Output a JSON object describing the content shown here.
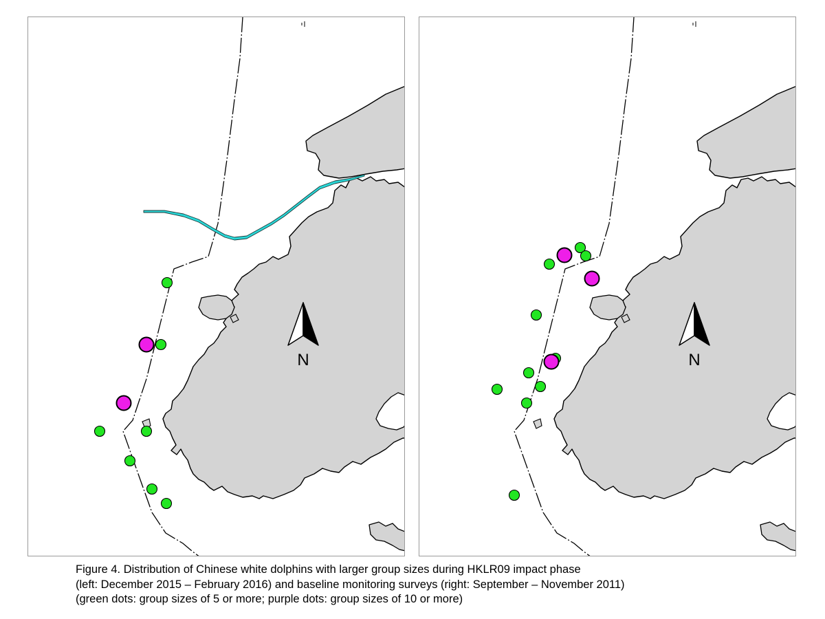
{
  "colors": {
    "land": "#d4d4d4",
    "coast": "#000000",
    "boundary": "#000000",
    "green_dot": "#22e622",
    "purple_dot": "#ee1ee8",
    "bridge_fill": "#2ad8d8",
    "panel_border": "#9a9a9a"
  },
  "panels": [
    {
      "name": "left",
      "period": "December 2015 – February 2016",
      "north_label": "N",
      "north_icon": "north-arrow-icon",
      "has_bridge": true
    },
    {
      "name": "right",
      "period": "September – November 2011",
      "north_label": "N",
      "north_icon": "north-arrow-icon",
      "has_bridge": false
    }
  ],
  "caption": {
    "line1": "Figure 4. Distribution of Chinese white dolphins with larger group sizes during HKLR09 impact phase",
    "line2": "(left: December 2015 – February 2016) and baseline monitoring surveys (right: September – November 2011)",
    "line3": "(green dots: group sizes of 5 or more; purple dots: group sizes of 10 or more)"
  },
  "legend": {
    "green": "group sizes of 5 or more",
    "purple": "group sizes of 10 or more"
  }
}
